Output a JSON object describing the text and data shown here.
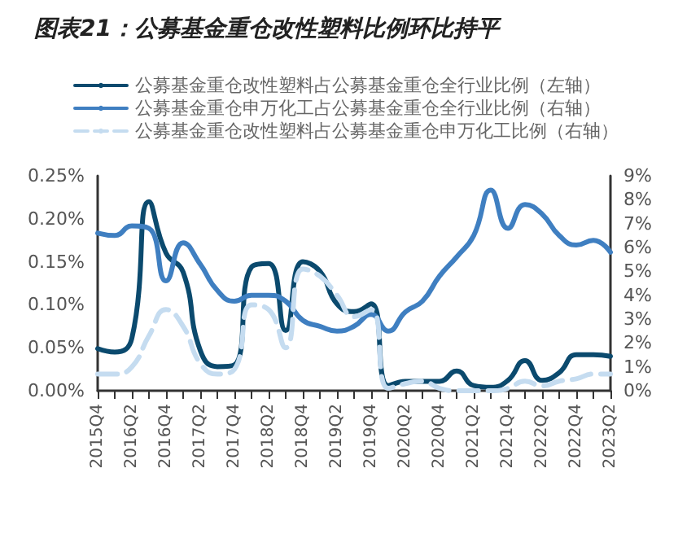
{
  "chart_data": {
    "type": "line",
    "title": "图表21：公募基金重仓改性塑料比例环比持平",
    "categories": [
      "2015Q4",
      null,
      "2016Q2",
      null,
      "2016Q4",
      null,
      "2017Q2",
      null,
      "2017Q4",
      null,
      "2018Q2",
      null,
      "2018Q4",
      null,
      "2019Q2",
      null,
      "2019Q4",
      null,
      "2020Q2",
      null,
      "2020Q4",
      null,
      "2021Q2",
      null,
      "2021Q4",
      null,
      "2022Q2",
      null,
      "2022Q4",
      null,
      "2023Q2"
    ],
    "series": [
      {
        "name": "公募基金重仓改性塑料占公募基金重仓全行业比例（左轴）",
        "color": "#0b4a6e",
        "line_style": "solid",
        "values": [
          0.049,
          0.045,
          0.061,
          0.22,
          0.16,
          0.138,
          0.047,
          0.028,
          0.03,
          0.144,
          0.148,
          0.07,
          0.15,
          0.139,
          0.101,
          0.092,
          0.101,
          0.006,
          0.011,
          0.011,
          0.011,
          0.023,
          0.006,
          0.004,
          0.012,
          0.035,
          0.012,
          0.021,
          0.042,
          0.042,
          0.04
        ]
      },
      {
        "name": "公募基金重仓申万化工占公募基金重仓全行业比例（右轴）",
        "color": "#3f7fc1",
        "axis": "y2",
        "line_style": "solid",
        "values": [
          6.6,
          6.5,
          6.9,
          6.8,
          4.6,
          6.2,
          5.3,
          4.2,
          3.75,
          4.0,
          4.0,
          3.75,
          2.95,
          2.7,
          2.5,
          2.7,
          3.2,
          2.5,
          3.3,
          3.75,
          4.8,
          5.6,
          6.5,
          8.4,
          6.8,
          7.8,
          7.4,
          6.5,
          6.1,
          6.3,
          5.8
        ]
      },
      {
        "name": "公募基金重仓改性塑料占公募基金重仓申万化工比例（右轴）",
        "color": "#c5dcf0",
        "axis": "y2",
        "line_style": "dashed",
        "values": [
          0.7,
          0.7,
          1.0,
          2.3,
          3.4,
          2.7,
          1.15,
          0.7,
          0.9,
          3.6,
          3.4,
          1.8,
          5.1,
          4.8,
          4.0,
          3.1,
          3.4,
          0.1,
          0.3,
          0.4,
          0.1,
          0.0,
          0.0,
          0.0,
          0.1,
          0.4,
          0.2,
          0.4,
          0.5,
          0.7,
          0.7
        ]
      }
    ],
    "ylim": [
      0,
      0.25
    ],
    "yticks": [
      {
        "value": 0,
        "label": "0.00%"
      },
      {
        "value": 0.05,
        "label": "0.05%"
      },
      {
        "value": 0.1,
        "label": "0.10%"
      },
      {
        "value": 0.15,
        "label": "0.15%"
      },
      {
        "value": 0.2,
        "label": "0.20%"
      },
      {
        "value": 0.25,
        "label": "0.25%"
      }
    ],
    "y2lim": [
      0,
      9
    ],
    "y2ticks": [
      {
        "value": 0,
        "label": "0%"
      },
      {
        "value": 1,
        "label": "1%"
      },
      {
        "value": 2,
        "label": "2%"
      },
      {
        "value": 3,
        "label": "3%"
      },
      {
        "value": 4,
        "label": "4%"
      },
      {
        "value": 5,
        "label": "5%"
      },
      {
        "value": 6,
        "label": "6%"
      },
      {
        "value": 7,
        "label": "7%"
      },
      {
        "value": 8,
        "label": "8%"
      },
      {
        "value": 9,
        "label": "9%"
      }
    ],
    "grid": false,
    "legend": "top",
    "marker": "none"
  }
}
